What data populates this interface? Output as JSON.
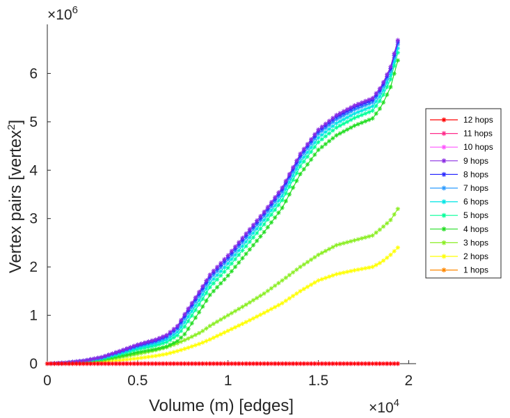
{
  "chart_data": {
    "type": "line",
    "title": "",
    "xlabel": "Volume (m) [edges]",
    "ylabel_main": "Vertex pairs [vertex",
    "ylabel_sup": "2",
    "ylabel_close": "]",
    "x_multiplier_base": "×10",
    "x_multiplier_exp": "4",
    "y_multiplier_base": "×10",
    "y_multiplier_exp": "6",
    "xlim": [
      0,
      2
    ],
    "ylim": [
      0,
      7
    ],
    "xticks": [
      0,
      0.5,
      1,
      1.5,
      2
    ],
    "xtick_labels": [
      "0",
      "0.5",
      "1",
      "1.5",
      "2"
    ],
    "yticks": [
      0,
      1,
      2,
      3,
      4,
      5,
      6
    ],
    "ytick_labels": [
      "0",
      "1",
      "2",
      "3",
      "4",
      "5",
      "6"
    ],
    "legend_position": "east-outside",
    "marker": "*",
    "series": [
      {
        "name": "12 hops",
        "color": "#ff0000",
        "ref": "flat"
      },
      {
        "name": "11 hops",
        "color": "#ff2a8a",
        "ref": "flat"
      },
      {
        "name": "10 hops",
        "color": "#ff55ff",
        "ref": "flat"
      },
      {
        "name": "9 hops",
        "color": "#8a2be2",
        "ref": "top",
        "offset": 0.04
      },
      {
        "name": "8 hops",
        "color": "#2a2aff",
        "ref": "top",
        "offset": 0.0
      },
      {
        "name": "7 hops",
        "color": "#2a9aff",
        "ref": "top",
        "offset": -0.05
      },
      {
        "name": "6 hops",
        "color": "#00e5e5",
        "ref": "top",
        "offset": -0.13
      },
      {
        "name": "5 hops",
        "color": "#00ff99",
        "ref": "top",
        "offset": -0.22
      },
      {
        "name": "4 hops",
        "color": "#22dd22",
        "ref": "top",
        "offset": -0.38
      },
      {
        "name": "3 hops",
        "color": "#8aee22",
        "ref": "three"
      },
      {
        "name": "2 hops",
        "color": "#ffff00",
        "ref": "two"
      },
      {
        "name": "1 hops",
        "color": "#ff8800",
        "ref": "flat"
      }
    ],
    "reference_curves": {
      "x": [
        0,
        0.1,
        0.2,
        0.3,
        0.4,
        0.5,
        0.6,
        0.66,
        0.72,
        0.78,
        0.85,
        0.9,
        1.0,
        1.1,
        1.2,
        1.3,
        1.4,
        1.5,
        1.6,
        1.7,
        1.8,
        1.85,
        1.9,
        1.94
      ],
      "top": [
        0,
        0.02,
        0.06,
        0.13,
        0.25,
        0.38,
        0.48,
        0.57,
        0.75,
        1.1,
        1.5,
        1.8,
        2.2,
        2.65,
        3.1,
        3.6,
        4.3,
        4.8,
        5.1,
        5.3,
        5.45,
        5.7,
        6.1,
        6.65
      ],
      "three": [
        0,
        0.01,
        0.03,
        0.07,
        0.13,
        0.2,
        0.28,
        0.34,
        0.42,
        0.52,
        0.65,
        0.78,
        1.0,
        1.22,
        1.45,
        1.72,
        2.0,
        2.25,
        2.45,
        2.55,
        2.65,
        2.8,
        2.97,
        3.2
      ],
      "two": [
        0,
        0.005,
        0.015,
        0.04,
        0.07,
        0.11,
        0.16,
        0.2,
        0.26,
        0.33,
        0.42,
        0.5,
        0.68,
        0.86,
        1.05,
        1.25,
        1.5,
        1.72,
        1.85,
        1.93,
        2.0,
        2.1,
        2.25,
        2.4
      ],
      "flat": [
        0,
        0,
        0,
        0,
        0,
        0,
        0,
        0,
        0,
        0,
        0,
        0,
        0,
        0,
        0,
        0,
        0,
        0,
        0,
        0,
        0,
        0,
        0,
        0
      ]
    }
  }
}
